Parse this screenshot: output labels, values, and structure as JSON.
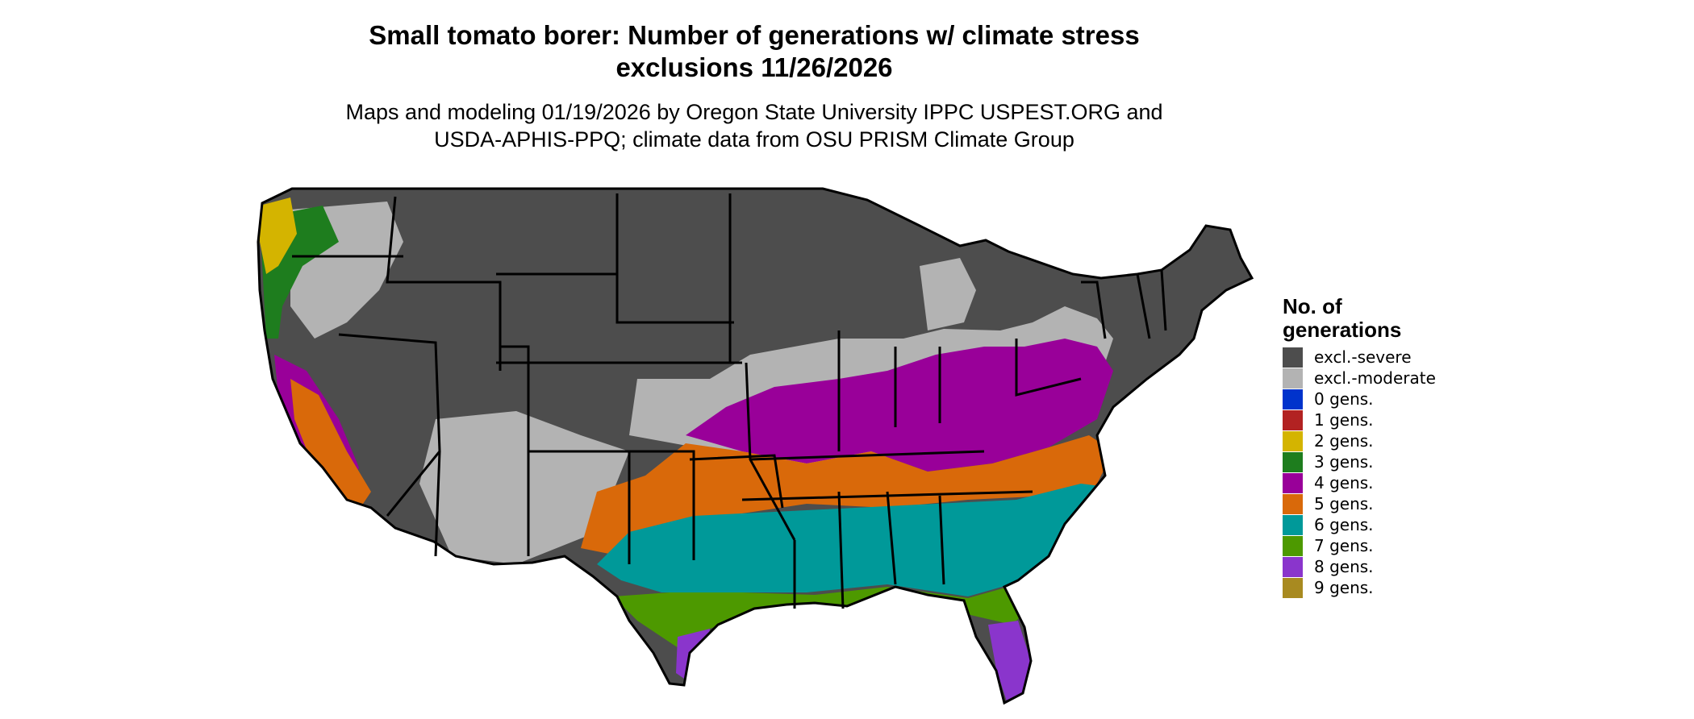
{
  "header": {
    "title_line1": "Small tomato borer: Number of generations w/ climate stress",
    "title_line2": "exclusions 11/26/2026",
    "subtitle_line1": "Maps and modeling 01/19/2026 by Oregon State University IPPC USPEST.ORG and",
    "subtitle_line2": "USDA-APHIS-PPQ; climate data from OSU PRISM Climate Group"
  },
  "legend": {
    "title_line1": "No. of",
    "title_line2": "generations",
    "items": [
      {
        "label": "excl.-severe",
        "color": "#4d4d4d"
      },
      {
        "label": "excl.-moderate",
        "color": "#b3b3b3"
      },
      {
        "label": "0 gens.",
        "color": "#0033cc"
      },
      {
        "label": "1 gens.",
        "color": "#b22222"
      },
      {
        "label": "2 gens.",
        "color": "#d4b400"
      },
      {
        "label": "3 gens.",
        "color": "#1e7d1e"
      },
      {
        "label": "4 gens.",
        "color": "#990099"
      },
      {
        "label": "5 gens.",
        "color": "#d9690a"
      },
      {
        "label": "6 gens.",
        "color": "#009999"
      },
      {
        "label": "7 gens.",
        "color": "#4d9900"
      },
      {
        "label": "8 gens.",
        "color": "#8a35cc"
      },
      {
        "label": "9 gens.",
        "color": "#a88a20"
      }
    ]
  }
}
